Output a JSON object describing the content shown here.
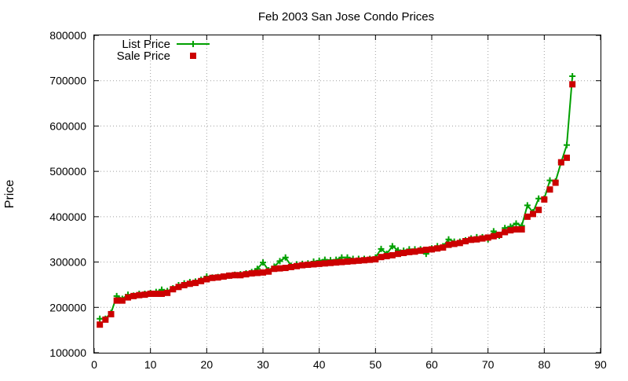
{
  "chart_data": {
    "type": "line",
    "title": "Feb 2003 San Jose Condo Prices",
    "xlabel": "",
    "ylabel": "Price",
    "xlim": [
      0,
      90
    ],
    "ylim": [
      100000,
      800000
    ],
    "xticks": [
      0,
      10,
      20,
      30,
      40,
      50,
      60,
      70,
      80,
      90
    ],
    "yticks": [
      100000,
      200000,
      300000,
      400000,
      500000,
      600000,
      700000,
      800000
    ],
    "grid": true,
    "legend_position": "top-left",
    "series": [
      {
        "name": "List Price",
        "color": "#00a000",
        "style": "line+plus",
        "x": [
          1,
          2,
          3,
          4,
          5,
          6,
          7,
          8,
          9,
          10,
          11,
          12,
          13,
          14,
          15,
          16,
          17,
          18,
          19,
          20,
          21,
          22,
          23,
          24,
          25,
          26,
          27,
          28,
          29,
          30,
          31,
          32,
          33,
          34,
          35,
          36,
          37,
          38,
          39,
          40,
          41,
          42,
          43,
          44,
          45,
          46,
          47,
          48,
          49,
          50,
          51,
          52,
          53,
          54,
          55,
          56,
          57,
          58,
          59,
          60,
          61,
          62,
          63,
          64,
          65,
          66,
          67,
          68,
          69,
          70,
          71,
          72,
          73,
          74,
          75,
          76,
          77,
          78,
          79,
          80,
          81,
          82,
          83,
          84,
          85
        ],
        "y": [
          175000,
          175000,
          188000,
          225000,
          219000,
          228000,
          226000,
          230000,
          230000,
          232000,
          234000,
          239000,
          236000,
          242000,
          249000,
          253000,
          256000,
          257000,
          261000,
          268000,
          266000,
          267000,
          268000,
          270000,
          272000,
          273000,
          275000,
          278000,
          285000,
          299000,
          282000,
          290000,
          302000,
          310000,
          292000,
          295000,
          296000,
          297000,
          301000,
          303000,
          305000,
          304000,
          305000,
          310000,
          310000,
          307000,
          307000,
          307000,
          307000,
          310000,
          329000,
          318000,
          335000,
          326000,
          325000,
          328000,
          328000,
          328000,
          318000,
          330000,
          335000,
          335000,
          350000,
          345000,
          345000,
          348000,
          352000,
          355000,
          355000,
          350000,
          368000,
          358000,
          375000,
          378000,
          385000,
          380000,
          425000,
          410000,
          440000,
          440000,
          480000,
          478000,
          520000,
          558000,
          710000
        ]
      },
      {
        "name": "Sale Price",
        "color": "#cc0000",
        "style": "square",
        "x": [
          1,
          2,
          3,
          4,
          5,
          6,
          7,
          8,
          9,
          10,
          11,
          12,
          13,
          14,
          15,
          16,
          17,
          18,
          19,
          20,
          21,
          22,
          23,
          24,
          25,
          26,
          27,
          28,
          29,
          30,
          31,
          32,
          33,
          34,
          35,
          36,
          37,
          38,
          39,
          40,
          41,
          42,
          43,
          44,
          45,
          46,
          47,
          48,
          49,
          50,
          51,
          52,
          53,
          54,
          55,
          56,
          57,
          58,
          59,
          60,
          61,
          62,
          63,
          64,
          65,
          66,
          67,
          68,
          69,
          70,
          71,
          72,
          73,
          74,
          75,
          76,
          77,
          78,
          79,
          80,
          81,
          82,
          83,
          84,
          85
        ],
        "y": [
          162000,
          173000,
          185000,
          215000,
          215000,
          222000,
          225000,
          227000,
          228000,
          230000,
          230000,
          230000,
          232000,
          240000,
          245000,
          249000,
          252000,
          254000,
          258000,
          262000,
          265000,
          266000,
          268000,
          270000,
          271000,
          271000,
          273000,
          275000,
          276000,
          277000,
          279000,
          285000,
          286000,
          287000,
          289000,
          291000,
          293000,
          294000,
          295000,
          296000,
          297000,
          298000,
          299000,
          300000,
          301000,
          302000,
          303000,
          304000,
          305000,
          306000,
          311000,
          313000,
          315000,
          318000,
          320000,
          322000,
          323000,
          325000,
          327000,
          328000,
          330000,
          332000,
          338000,
          340000,
          342000,
          346000,
          349000,
          350000,
          352000,
          354000,
          357000,
          360000,
          366000,
          370000,
          372000,
          372000,
          400000,
          406000,
          415000,
          438000,
          460000,
          475000,
          520000,
          530000,
          692000
        ]
      }
    ]
  }
}
